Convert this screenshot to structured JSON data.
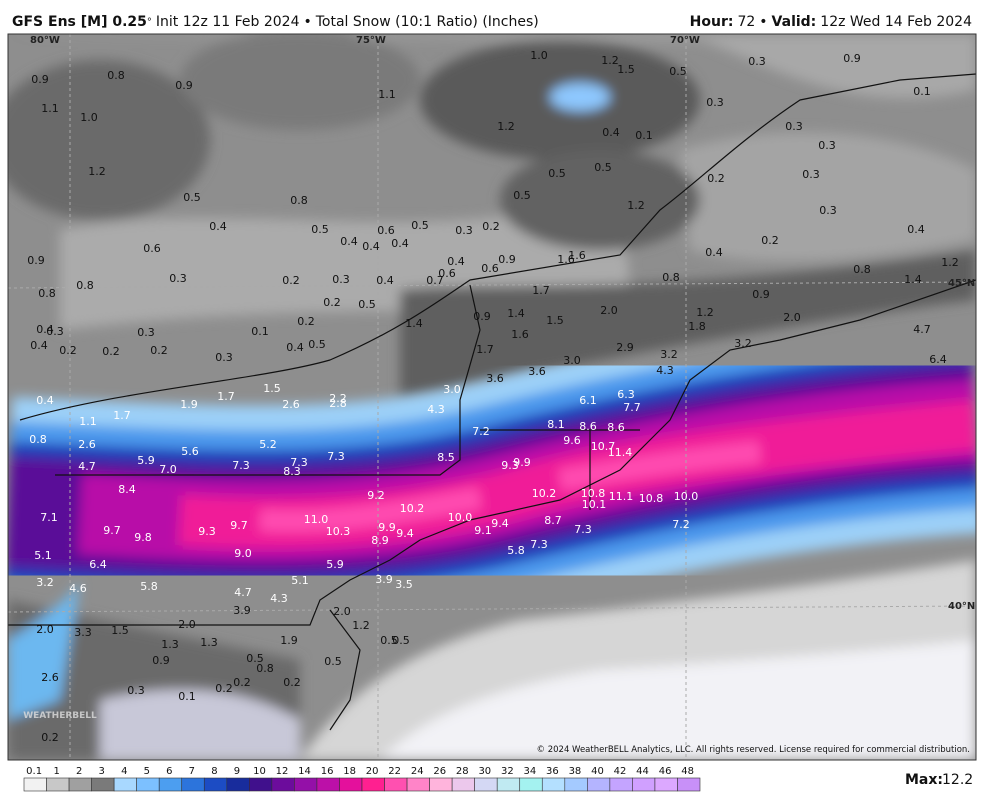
{
  "header": {
    "model": "GFS Ens [M] 0.25",
    "degree": "°",
    "init": "Init 12z 11 Feb 2024",
    "separator": "•",
    "product": "Total Snow (10:1 Ratio) (Inches)",
    "hour_label": "Hour:",
    "hour": "72",
    "valid_label": "Valid:",
    "valid": "12z Wed 14 Feb 2024"
  },
  "map": {
    "lon_labels": [
      "80°W",
      "75°W",
      "70°W"
    ],
    "lat_labels": [
      "45°N",
      "40°N"
    ],
    "copyright": "© 2024 WeatherBELL Analytics, LLC. All rights reserved. License required for commercial distribution.",
    "logo": "WEATHERBELL",
    "point_labels": [
      "0.9",
      "0.8",
      "0.9",
      "1.1",
      "1.0",
      "1.1",
      "1.0",
      "1.2",
      "1.5",
      "0.5",
      "0.3",
      "0.9",
      "0.1",
      "1.2",
      "0.4",
      "0.1",
      "0.3",
      "0.3",
      "0.3",
      "1.2",
      "0.5",
      "0.8",
      "0.4",
      "0.5",
      "0.6",
      "0.5",
      "0.4",
      "0.4",
      "0.4",
      "0.3",
      "0.2",
      "0.5",
      "0.5",
      "0.5",
      "1.2",
      "0.2",
      "0.3",
      "0.3",
      "0.2",
      "0.4",
      "0.4",
      "1.2",
      "1.4",
      "0.8",
      "0.9",
      "0.6",
      "0.3",
      "0.8",
      "0.8",
      "0.2",
      "0.3",
      "0.4",
      "0.7",
      "0.6",
      "0.4",
      "0.6",
      "0.9",
      "1.6",
      "1.6",
      "0.8",
      "0.9",
      "1.7",
      "0.5",
      "0.2",
      "0.2",
      "0.4",
      "0.3",
      "0.3",
      "0.4",
      "0.2",
      "0.2",
      "0.2",
      "0.1",
      "0.3",
      "0.4",
      "0.5",
      "1.4",
      "0.9",
      "1.4",
      "1.6",
      "1.5",
      "2.0",
      "1.2",
      "1.8",
      "2.0",
      "3.2",
      "4.7",
      "2.9",
      "3.2",
      "4.3",
      "1.7",
      "3.0",
      "3.6",
      "3.6",
      "3.0",
      "1.5",
      "1.7",
      "1.9",
      "1.7",
      "1.1",
      "0.4",
      "0.8",
      "2.6",
      "2.2",
      "2.8",
      "4.3",
      "6.1",
      "6.3",
      "7.7",
      "6.4",
      "2.6",
      "4.7",
      "5.9",
      "5.6",
      "7.0",
      "5.2",
      "7.3",
      "7.3",
      "8.3",
      "7.3",
      "7.2",
      "8.1",
      "8.6",
      "8.6",
      "9.6",
      "10.7",
      "11.4",
      "8.5",
      "9.3",
      "9.9",
      "8.4",
      "7.1",
      "9.7",
      "9.8",
      "9.3",
      "9.7",
      "11.0",
      "9.2",
      "10.2",
      "10.0",
      "10.2",
      "10.8",
      "10.1",
      "11.1",
      "10.8",
      "10.0",
      "7.2",
      "8.7",
      "9.4",
      "9.1",
      "9.9",
      "9.4",
      "10.3",
      "8.9",
      "7.3",
      "7.3",
      "5.8",
      "9.0",
      "5.1",
      "6.4",
      "5.9",
      "3.2",
      "4.6",
      "5.8",
      "4.7",
      "5.1",
      "3.9",
      "3.5",
      "3.9",
      "4.3",
      "2.0",
      "1.2",
      "2.0",
      "3.3",
      "1.5",
      "2.0",
      "1.3",
      "1.3",
      "1.9",
      "0.5",
      "0.5",
      "0.9",
      "0.5",
      "0.5",
      "0.8",
      "2.6",
      "0.3",
      "0.1",
      "0.2",
      "0.2",
      "0.2",
      "0.2"
    ]
  },
  "legend": {
    "ticks": [
      "0.1",
      "1",
      "2",
      "3",
      "4",
      "5",
      "6",
      "7",
      "8",
      "9",
      "10",
      "12",
      "14",
      "16",
      "18",
      "20",
      "22",
      "24",
      "26",
      "28",
      "30",
      "32",
      "34",
      "36",
      "38",
      "40",
      "42",
      "44",
      "46",
      "48"
    ],
    "colors": [
      "#f2f2f2",
      "#c8c8c8",
      "#a0a0a0",
      "#7a7a7a",
      "#a8d8ff",
      "#7cc0ff",
      "#4c9ef0",
      "#2c74dc",
      "#1c4cc4",
      "#182c9c",
      "#40108c",
      "#6c0c9c",
      "#9410a8",
      "#bc10a8",
      "#e4109c",
      "#ff2090",
      "#ff50b0",
      "#ff84c8",
      "#ffb4dc",
      "#ecc8ec",
      "#d4d8f4",
      "#c0eaf2",
      "#a4f2f0",
      "#b4e0ff",
      "#a4caff",
      "#b4b4ff",
      "#c4a4ff",
      "#d0a0ff",
      "#dca8ff",
      "#c890f8"
    ],
    "max_label": "Max:",
    "max": "12.2"
  }
}
